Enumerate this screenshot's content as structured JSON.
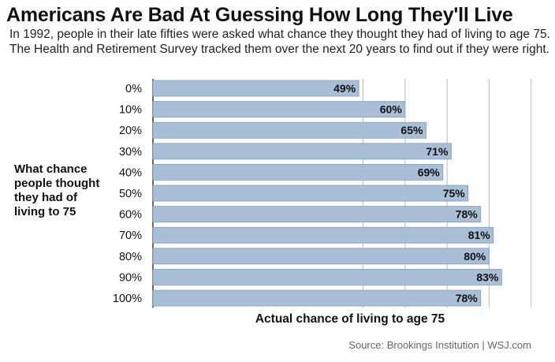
{
  "chart_data": {
    "type": "bar",
    "orientation": "horizontal",
    "title": "Americans Are Bad At Guessing How Long They'll Live",
    "subtitle": "In 1992, people in their late fifties were asked what chance they thought they had of living to age 75. The Health and Retirement Survey tracked them over the next 20 years to find out if they were right.",
    "ylabel": "What chance people thought they had of living to 75",
    "xlabel": "Actual chance of living to age 75",
    "categories": [
      "0%",
      "10%",
      "20%",
      "30%",
      "40%",
      "50%",
      "60%",
      "70%",
      "80%",
      "90%",
      "100%"
    ],
    "values": [
      49,
      60,
      65,
      71,
      69,
      75,
      78,
      81,
      80,
      83,
      78
    ],
    "value_labels": [
      "49%",
      "60%",
      "65%",
      "71%",
      "69%",
      "75%",
      "78%",
      "81%",
      "80%",
      "83%",
      "78%"
    ],
    "xlim": [
      0,
      100
    ],
    "gridlines": [
      0,
      50,
      60,
      70,
      80,
      90
    ],
    "grid": true,
    "bar_color": "#a9bfd8",
    "bar_edge_color": "#7f9dbd",
    "grid_color": "#bbbbbb",
    "source": "Source: Brookings Institution  |  WSJ.com"
  }
}
